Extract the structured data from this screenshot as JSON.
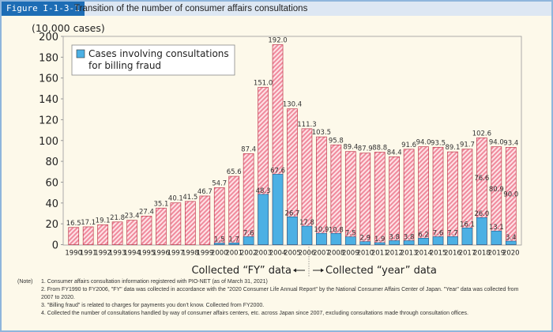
{
  "figure": {
    "label": "Figure I-1-3-1",
    "title": "Transition of the number of consumer affairs consultations"
  },
  "chart_data": {
    "type": "bar",
    "ylabel": "(10,000 cases)",
    "ylim": [
      0,
      200
    ],
    "yticks": [
      0,
      20,
      40,
      60,
      80,
      100,
      120,
      140,
      160,
      180,
      200
    ],
    "categories": [
      "1990",
      "1991",
      "1992",
      "1993",
      "1994",
      "1995",
      "1996",
      "1997",
      "1998",
      "1999",
      "2000",
      "2001",
      "2002",
      "2003",
      "2004",
      "2005",
      "2006",
      "2007",
      "2008",
      "2009",
      "2010",
      "2011",
      "2012",
      "2013",
      "2014",
      "2015",
      "2016",
      "2017",
      "2018",
      "2019",
      "2020"
    ],
    "totals": [
      16.5,
      17.1,
      19.1,
      21.8,
      23.4,
      27.4,
      35.1,
      40.1,
      41.5,
      46.7,
      54.7,
      65.6,
      87.4,
      151.0,
      192.0,
      130.4,
      111.3,
      103.5,
      95.8,
      89.4,
      87.9,
      88.8,
      84.4,
      91.6,
      94.0,
      93.5,
      89.1,
      91.7,
      102.6,
      94.0,
      93.4
    ],
    "series": [
      {
        "name": "Cases involving consultations for billing fraud",
        "color": "#4cb0e4",
        "values": [
          null,
          null,
          null,
          null,
          null,
          null,
          null,
          null,
          null,
          null,
          1.5,
          1.7,
          7.6,
          48.3,
          67.6,
          26.7,
          17.8,
          10.9,
          10.8,
          7.5,
          2.9,
          1.9,
          3.8,
          3.8,
          6.2,
          7.6,
          7.7,
          16.1,
          26.0,
          13.1,
          3.4
        ]
      }
    ],
    "other_labels": {
      "2018": "76.6",
      "2019": "80.9",
      "2020": "90.0"
    },
    "legend": {
      "label": "Cases involving consultations\nfor billing fraud",
      "line1": "Cases involving consultations",
      "line2": "for billing fraud",
      "placement": "top-left"
    },
    "total_color": "#f4a6b4",
    "annotations": {
      "fy": "Collected “FY” data",
      "year": "Collected “year” data"
    }
  },
  "notes": {
    "label": "(Note)",
    "items": [
      "1. Consumer affairs consultation information registered with PIO-NET (as of March 31, 2021)",
      "2. From FY1990 to FY2006, \"FY\" data was collected in accordance with the \"2020 Consumer Life Annual Report\" by the National Consumer Affairs Center of Japan. \"Year\" data was collected from 2007 to 2020.",
      "3. \"Billing fraud\" is related to charges for payments you don't know. Collected from FY2000.",
      "4. Collected the number of consultations handled by way of consumer affairs centers, etc. across Japan since 2007, excluding consultations made through consultation offices."
    ]
  }
}
